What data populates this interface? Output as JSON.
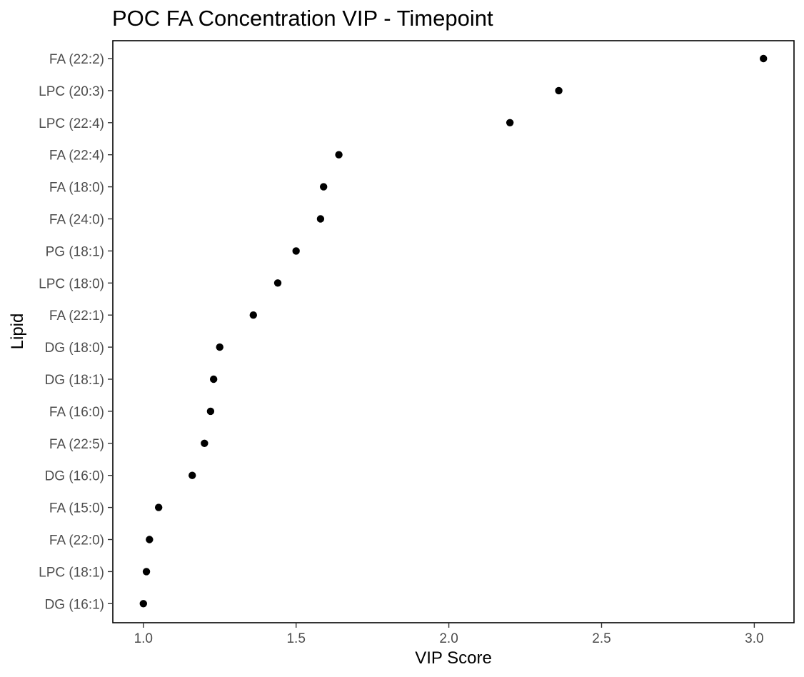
{
  "chart_data": {
    "type": "scatter",
    "title": "POC FA Concentration VIP - Timepoint",
    "xlabel": "VIP Score",
    "ylabel": "Lipid",
    "xlim": [
      0.9,
      3.13
    ],
    "x_ticks": [
      "1.0",
      "1.5",
      "2.0",
      "2.5",
      "3.0"
    ],
    "grid": false,
    "marker_color": "#000000",
    "points": [
      {
        "label": "FA (22:2)",
        "value": 3.03
      },
      {
        "label": "LPC (20:3)",
        "value": 2.36
      },
      {
        "label": "LPC (22:4)",
        "value": 2.2
      },
      {
        "label": "FA (22:4)",
        "value": 1.64
      },
      {
        "label": "FA (18:0)",
        "value": 1.59
      },
      {
        "label": "FA (24:0)",
        "value": 1.58
      },
      {
        "label": "PG (18:1)",
        "value": 1.5
      },
      {
        "label": "LPC (18:0)",
        "value": 1.44
      },
      {
        "label": "FA (22:1)",
        "value": 1.36
      },
      {
        "label": "DG (18:0)",
        "value": 1.25
      },
      {
        "label": "DG (18:1)",
        "value": 1.23
      },
      {
        "label": "FA (16:0)",
        "value": 1.22
      },
      {
        "label": "FA (22:5)",
        "value": 1.2
      },
      {
        "label": "DG (16:0)",
        "value": 1.16
      },
      {
        "label": "FA (15:0)",
        "value": 1.05
      },
      {
        "label": "FA (22:0)",
        "value": 1.02
      },
      {
        "label": "LPC (18:1)",
        "value": 1.01
      },
      {
        "label": "DG (16:1)",
        "value": 1.0
      }
    ]
  }
}
